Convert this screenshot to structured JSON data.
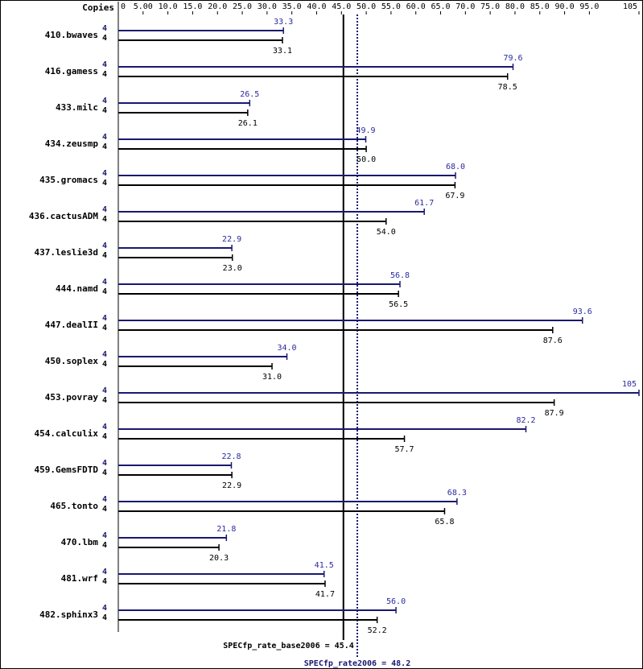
{
  "chart_data": {
    "type": "bar",
    "orientation": "horizontal",
    "copies_header": "Copies",
    "categories": [
      "410.bwaves",
      "416.gamess",
      "433.milc",
      "434.zeusmp",
      "435.gromacs",
      "436.cactusADM",
      "437.leslie3d",
      "444.namd",
      "447.dealII",
      "450.soplex",
      "453.povray",
      "454.calculix",
      "459.GemsFDTD",
      "465.tonto",
      "470.lbm",
      "481.wrf",
      "482.sphinx3"
    ],
    "series": [
      {
        "color": "#191970",
        "copies": [
          4,
          4,
          4,
          4,
          4,
          4,
          4,
          4,
          4,
          4,
          4,
          4,
          4,
          4,
          4,
          4,
          4
        ],
        "values": [
          33.3,
          79.6,
          26.5,
          49.9,
          68.0,
          61.7,
          22.9,
          56.8,
          93.6,
          34.0,
          105,
          82.2,
          22.8,
          68.3,
          21.8,
          41.5,
          56.0
        ],
        "value_labels": [
          "33.3",
          "79.6",
          "26.5",
          "49.9",
          "68.0",
          "61.7",
          "22.9",
          "56.8",
          "93.6",
          "34.0",
          "105",
          "82.2",
          "22.8",
          "68.3",
          "21.8",
          "41.5",
          "56.0"
        ]
      },
      {
        "color": "#000000",
        "copies": [
          4,
          4,
          4,
          4,
          4,
          4,
          4,
          4,
          4,
          4,
          4,
          4,
          4,
          4,
          4,
          4,
          4
        ],
        "values": [
          33.1,
          78.5,
          26.1,
          50.0,
          67.9,
          54.0,
          23.0,
          56.5,
          87.6,
          31.0,
          87.9,
          57.7,
          22.9,
          65.8,
          20.3,
          41.7,
          52.2
        ],
        "value_labels": [
          "33.1",
          "78.5",
          "26.1",
          "50.0",
          "67.9",
          "54.0",
          "23.0",
          "56.5",
          "87.6",
          "31.0",
          "87.9",
          "57.7",
          "22.9",
          "65.8",
          "20.3",
          "41.7",
          "52.2"
        ]
      }
    ],
    "xlim": [
      0,
      105
    ],
    "xticks": [
      0,
      {
        "value": 5,
        "label": "5.00"
      },
      {
        "value": 10,
        "label": "10.0"
      },
      {
        "value": 15,
        "label": "15.0"
      },
      {
        "value": 20,
        "label": "20.0"
      },
      {
        "value": 25,
        "label": "25.0"
      },
      {
        "value": 30,
        "label": "30.0"
      },
      {
        "value": 35,
        "label": "35.0"
      },
      {
        "value": 40,
        "label": "40.0"
      },
      {
        "value": 45,
        "label": "45.0"
      },
      {
        "value": 50,
        "label": "50.0"
      },
      {
        "value": 55,
        "label": "55.0"
      },
      {
        "value": 60,
        "label": "60.0"
      },
      {
        "value": 65,
        "label": "65.0"
      },
      {
        "value": 70,
        "label": "70.0"
      },
      {
        "value": 75,
        "label": "75.0"
      },
      {
        "value": 80,
        "label": "80.0"
      },
      {
        "value": 85,
        "label": "85.0"
      },
      {
        "value": 90,
        "label": "90.0"
      },
      {
        "value": 95,
        "label": "95.0"
      },
      105
    ],
    "reference_lines": [
      {
        "label": "SPECfp_rate_base2006 = 45.4",
        "value": 45.4,
        "color": "#000000",
        "style": "solid"
      },
      {
        "label": "SPECfp_rate2006 = 48.2",
        "value": 48.2,
        "color": "#191970",
        "style": "dotted"
      }
    ]
  }
}
